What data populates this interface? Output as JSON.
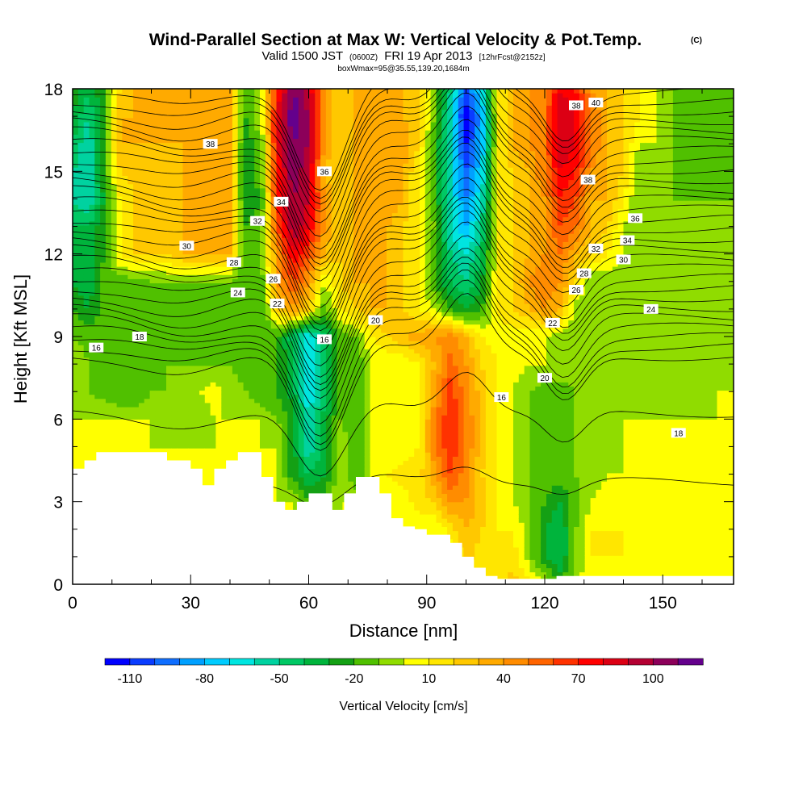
{
  "chart_data": {
    "type": "heatmap",
    "title": {
      "main": "Wind-Parallel Section at Max W: Vertical Velocity & Pot.Temp.",
      "copyright": "(C)",
      "valid_prefix": "Valid 1500 JST",
      "valid_utc": "(0600Z)",
      "valid_date": "FRI 19 Apr 2013",
      "forecast": "[12hrFcst@2152z]",
      "box": "boxWmax=95@35.55,139.20,1684m"
    },
    "xlabel": "Distance [nm]",
    "ylabel": "Height [Kft MSL]",
    "xlim": [
      0,
      168
    ],
    "ylim": [
      0,
      18
    ],
    "xticks": [
      0,
      30,
      60,
      90,
      120,
      150
    ],
    "yticks": [
      0,
      3,
      6,
      9,
      12,
      15,
      18
    ],
    "colorbar": {
      "title": "Vertical Velocity [cm/s]",
      "levels": [
        -120,
        -110,
        -100,
        -90,
        -80,
        -70,
        -60,
        -50,
        -40,
        -30,
        -20,
        -10,
        0,
        10,
        20,
        30,
        40,
        50,
        60,
        70,
        80,
        90,
        100,
        110,
        120
      ],
      "colors": [
        "#0000ff",
        "#0a3cff",
        "#0f6eff",
        "#00a0ff",
        "#00ccff",
        "#00e5e0",
        "#00d2a0",
        "#00c864",
        "#00b43c",
        "#14a014",
        "#50c000",
        "#90dc00",
        "#ffff00",
        "#ffe600",
        "#ffc800",
        "#ffaa00",
        "#ff8c00",
        "#ff6400",
        "#ff3200",
        "#ff0000",
        "#dc0014",
        "#b40032",
        "#8c005a",
        "#64008c"
      ],
      "tick_labels": [
        "-110",
        "-80",
        "-50",
        "-20",
        "10",
        "40",
        "70",
        "100"
      ]
    },
    "w_field": {
      "units": "cm/s",
      "x": [
        0,
        4,
        8,
        12,
        16,
        20,
        24,
        28,
        32,
        36,
        40,
        44,
        48,
        52,
        56,
        60,
        64,
        68,
        72,
        76,
        80,
        84,
        88,
        92,
        96,
        100,
        104,
        108,
        112,
        116,
        120,
        124,
        128,
        132,
        136,
        140,
        144,
        148,
        152,
        156,
        160,
        164,
        168
      ],
      "z": [
        0,
        1,
        2,
        3,
        4,
        5,
        6,
        7,
        8,
        9,
        10,
        11,
        12,
        13,
        14,
        15,
        16,
        17,
        18
      ],
      "values": [
        [
          0,
          0,
          0,
          0,
          0,
          0,
          0,
          0,
          0,
          0,
          0,
          0,
          0,
          0,
          0,
          0,
          0,
          0,
          0,
          0,
          0,
          0,
          0,
          0,
          0,
          0,
          5,
          15,
          25,
          15,
          0,
          -20,
          0,
          5,
          5,
          5,
          0,
          0,
          0,
          0,
          0,
          0,
          0
        ],
        [
          0,
          0,
          0,
          0,
          0,
          0,
          0,
          0,
          0,
          0,
          0,
          0,
          0,
          0,
          0,
          0,
          0,
          0,
          0,
          0,
          0,
          0,
          0,
          0,
          0,
          25,
          15,
          15,
          15,
          -5,
          -30,
          -40,
          -10,
          10,
          10,
          10,
          0,
          0,
          0,
          0,
          0,
          0,
          0
        ],
        [
          0,
          0,
          0,
          0,
          0,
          0,
          0,
          0,
          0,
          0,
          0,
          0,
          0,
          0,
          0,
          0,
          0,
          0,
          0,
          0,
          0,
          0,
          0,
          0,
          15,
          30,
          20,
          10,
          10,
          -5,
          -30,
          -40,
          -10,
          10,
          10,
          10,
          0,
          0,
          0,
          0,
          0,
          0,
          0
        ],
        [
          0,
          0,
          0,
          0,
          0,
          0,
          0,
          0,
          0,
          0,
          0,
          0,
          0,
          0,
          0,
          -20,
          -20,
          0,
          0,
          0,
          0,
          5,
          15,
          20,
          40,
          40,
          25,
          10,
          0,
          -10,
          -20,
          -30,
          -15,
          0,
          5,
          5,
          0,
          0,
          0,
          0,
          0,
          0,
          0
        ],
        [
          0,
          0,
          0,
          0,
          0,
          0,
          0,
          0,
          0,
          0,
          0,
          0,
          0,
          0,
          -25,
          -40,
          -30,
          0,
          -20,
          0,
          10,
          15,
          15,
          40,
          60,
          45,
          20,
          10,
          0,
          -10,
          -15,
          -15,
          -10,
          -5,
          0,
          0,
          0,
          0,
          0,
          0,
          0,
          0,
          0
        ],
        [
          0,
          0,
          0,
          0,
          0,
          0,
          0,
          0,
          0,
          0,
          0,
          0,
          0,
          0,
          -25,
          -60,
          -35,
          0,
          -20,
          0,
          0,
          5,
          10,
          45,
          70,
          50,
          25,
          10,
          0,
          -10,
          -20,
          -15,
          -10,
          -5,
          -5,
          0,
          0,
          0,
          0,
          0,
          0,
          0,
          0
        ],
        [
          0,
          0,
          0,
          0,
          0,
          0,
          -10,
          0,
          -10,
          0,
          0,
          0,
          0,
          -10,
          -25,
          -60,
          -35,
          -10,
          -20,
          0,
          0,
          0,
          10,
          45,
          70,
          50,
          25,
          10,
          0,
          -10,
          -15,
          -15,
          -10,
          -5,
          -5,
          0,
          0,
          0,
          0,
          0,
          0,
          0,
          0
        ],
        [
          0,
          -10,
          -15,
          -20,
          -20,
          -10,
          -10,
          -5,
          0,
          5,
          -5,
          -10,
          -20,
          -20,
          -35,
          -70,
          -45,
          -15,
          -20,
          0,
          0,
          0,
          10,
          40,
          65,
          45,
          25,
          10,
          0,
          -10,
          -15,
          -15,
          -10,
          -5,
          -5,
          -5,
          -5,
          -5,
          -5,
          -5,
          -5,
          0,
          0
        ],
        [
          0,
          -10,
          -15,
          -20,
          -20,
          -15,
          -10,
          -10,
          -10,
          -10,
          -10,
          -15,
          -20,
          -20,
          -35,
          -70,
          -45,
          -15,
          -20,
          0,
          0,
          0,
          10,
          30,
          55,
          40,
          20,
          10,
          5,
          0,
          0,
          0,
          -5,
          -5,
          -5,
          -5,
          -5,
          -5,
          -5,
          -5,
          -5,
          -5,
          0
        ],
        [
          -10,
          -15,
          -15,
          -20,
          -20,
          -20,
          -15,
          -20,
          -20,
          -20,
          -20,
          -20,
          -20,
          -20,
          -45,
          -70,
          -45,
          -15,
          -10,
          10,
          20,
          30,
          35,
          40,
          45,
          30,
          10,
          5,
          5,
          0,
          0,
          -5,
          -5,
          -5,
          -5,
          -5,
          -5,
          -5,
          -5,
          -5,
          -5,
          -5,
          -5
        ],
        [
          -20,
          -30,
          -15,
          -15,
          -15,
          -15,
          -15,
          -15,
          -15,
          -15,
          -15,
          -20,
          -20,
          20,
          40,
          20,
          -15,
          10,
          20,
          30,
          30,
          20,
          10,
          0,
          -20,
          -30,
          -20,
          10,
          20,
          30,
          40,
          30,
          -10,
          -10,
          -5,
          -5,
          -5,
          -5,
          -10,
          -10,
          -10,
          -10,
          -10
        ],
        [
          -30,
          -40,
          -15,
          -15,
          -15,
          -10,
          -10,
          -10,
          -10,
          -10,
          -10,
          -20,
          -15,
          40,
          60,
          40,
          0,
          20,
          30,
          30,
          30,
          20,
          10,
          -20,
          -40,
          -50,
          -30,
          10,
          20,
          40,
          50,
          40,
          20,
          -10,
          -5,
          -5,
          -5,
          -5,
          -10,
          -10,
          -10,
          -10,
          -10
        ],
        [
          -40,
          -40,
          -20,
          10,
          20,
          20,
          20,
          30,
          30,
          30,
          30,
          -20,
          -10,
          40,
          80,
          60,
          30,
          20,
          30,
          30,
          30,
          20,
          10,
          -20,
          -50,
          -60,
          -40,
          10,
          20,
          30,
          40,
          50,
          30,
          20,
          10,
          0,
          -10,
          -10,
          -5,
          -5,
          -5,
          -10,
          -10
        ],
        [
          -40,
          -40,
          -20,
          10,
          20,
          20,
          20,
          30,
          30,
          30,
          30,
          -20,
          -10,
          60,
          100,
          80,
          40,
          20,
          30,
          30,
          30,
          20,
          10,
          -10,
          -60,
          -80,
          -50,
          10,
          20,
          30,
          40,
          60,
          50,
          30,
          20,
          0,
          -10,
          -10,
          -5,
          -5,
          -5,
          -10,
          -10
        ],
        [
          -50,
          -60,
          -30,
          10,
          20,
          20,
          25,
          30,
          30,
          30,
          30,
          -30,
          -20,
          70,
          100,
          90,
          40,
          20,
          30,
          30,
          40,
          30,
          10,
          -20,
          -60,
          -90,
          -60,
          10,
          20,
          30,
          40,
          70,
          60,
          30,
          30,
          10,
          -10,
          -10,
          -10,
          -10,
          -10,
          -10,
          -10
        ],
        [
          -50,
          -60,
          -20,
          20,
          25,
          25,
          25,
          30,
          30,
          30,
          30,
          -30,
          -10,
          70,
          110,
          90,
          30,
          20,
          30,
          30,
          40,
          30,
          10,
          -20,
          -60,
          -100,
          -70,
          10,
          20,
          30,
          50,
          80,
          70,
          40,
          30,
          20,
          -10,
          -10,
          -10,
          -20,
          -20,
          -20,
          -20
        ],
        [
          -40,
          -60,
          -20,
          30,
          30,
          30,
          30,
          30,
          30,
          30,
          30,
          -30,
          -10,
          80,
          110,
          100,
          40,
          20,
          30,
          30,
          40,
          40,
          20,
          -20,
          -60,
          -110,
          -80,
          10,
          30,
          40,
          50,
          90,
          80,
          50,
          30,
          20,
          0,
          0,
          -10,
          -20,
          -20,
          -20,
          -20
        ],
        [
          -30,
          -50,
          -20,
          30,
          30,
          30,
          30,
          30,
          30,
          30,
          30,
          -20,
          0,
          80,
          120,
          100,
          40,
          20,
          30,
          30,
          30,
          30,
          20,
          -10,
          -60,
          -120,
          -80,
          10,
          30,
          40,
          50,
          90,
          80,
          50,
          30,
          20,
          10,
          0,
          -10,
          -20,
          -20,
          -20,
          -20
        ],
        [
          -20,
          -40,
          -20,
          20,
          30,
          30,
          30,
          30,
          30,
          30,
          30,
          -20,
          0,
          70,
          110,
          90,
          40,
          20,
          30,
          30,
          30,
          30,
          20,
          -10,
          -50,
          -100,
          -70,
          10,
          30,
          40,
          50,
          80,
          70,
          40,
          30,
          20,
          10,
          0,
          -10,
          -20,
          -20,
          -20,
          -20
        ]
      ]
    },
    "terrain": {
      "x": [
        0,
        3,
        6,
        9,
        12,
        18,
        24,
        30,
        33,
        36,
        39,
        42,
        45,
        48,
        51,
        54,
        57,
        60,
        63,
        66,
        69,
        72,
        75,
        78,
        81,
        84,
        87,
        90,
        93,
        96,
        99,
        102,
        105,
        108,
        111,
        114,
        117,
        120,
        123,
        126,
        129,
        132,
        140,
        150,
        160,
        168
      ],
      "h_kft": [
        4.2,
        4.5,
        4.8,
        4.8,
        4.8,
        4.8,
        4.5,
        4.2,
        3.6,
        4.2,
        4.5,
        4.8,
        4.8,
        3.9,
        3.0,
        2.7,
        3.0,
        3.3,
        3.3,
        2.7,
        3.3,
        3.9,
        3.9,
        3.3,
        2.4,
        2.1,
        2.0,
        1.8,
        1.8,
        1.5,
        1.0,
        0.6,
        0.3,
        0.2,
        0.2,
        0.2,
        0.2,
        0.2,
        0.3,
        0.3,
        0.3,
        0.3,
        0.3,
        0.3,
        0.3,
        0.3
      ]
    },
    "theta_field": {
      "units": "C",
      "levels": [
        14,
        15,
        16,
        17,
        18,
        19,
        20,
        21,
        22,
        23,
        24,
        25,
        26,
        27,
        28,
        29,
        30,
        31,
        32,
        33,
        34,
        35,
        36,
        37,
        38,
        39,
        40,
        41,
        42,
        43
      ],
      "theta_sfc": 12.5,
      "lapse_above_transition_per_kft": 2.8,
      "transition_kft": 8.2,
      "theta_at_transition": 15.8,
      "waves": [
        {
          "x": 28,
          "amplitude_kft": -0.6,
          "width_nm": 14
        },
        {
          "x": 61,
          "amplitude_kft": -2.3,
          "width_nm": 8
        },
        {
          "x": 66,
          "amplitude_kft": -1.5,
          "width_nm": 8
        },
        {
          "x": 79,
          "amplitude_kft": 0.6,
          "width_nm": 8
        },
        {
          "x": 96,
          "amplitude_kft": 0.9,
          "width_nm": 9
        },
        {
          "x": 101,
          "amplitude_kft": 1.6,
          "width_nm": 7
        },
        {
          "x": 125,
          "amplitude_kft": -1.7,
          "width_nm": 7
        }
      ],
      "contour_labels": [
        {
          "v": "16",
          "x": 6,
          "z": 8.6
        },
        {
          "v": "18",
          "x": 17,
          "z": 9.0
        },
        {
          "v": "16",
          "x": 64,
          "z": 8.9
        },
        {
          "v": "20",
          "x": 77,
          "z": 9.6
        },
        {
          "v": "22",
          "x": 52,
          "z": 10.2
        },
        {
          "v": "24",
          "x": 42,
          "z": 10.6
        },
        {
          "v": "26",
          "x": 51,
          "z": 11.1
        },
        {
          "v": "28",
          "x": 41,
          "z": 11.7
        },
        {
          "v": "30",
          "x": 29,
          "z": 12.3
        },
        {
          "v": "32",
          "x": 47,
          "z": 13.2
        },
        {
          "v": "34",
          "x": 53,
          "z": 13.9
        },
        {
          "v": "36",
          "x": 64,
          "z": 15.0
        },
        {
          "v": "38",
          "x": 35,
          "z": 16.0
        },
        {
          "v": "38",
          "x": 128,
          "z": 17.4
        },
        {
          "v": "16",
          "x": 109,
          "z": 6.8
        },
        {
          "v": "18",
          "x": 154,
          "z": 5.5
        },
        {
          "v": "20",
          "x": 120,
          "z": 7.5
        },
        {
          "v": "22",
          "x": 122,
          "z": 9.5
        },
        {
          "v": "24",
          "x": 147,
          "z": 10.0
        },
        {
          "v": "26",
          "x": 128,
          "z": 10.7
        },
        {
          "v": "28",
          "x": 130,
          "z": 11.3
        },
        {
          "v": "30",
          "x": 140,
          "z": 11.8
        },
        {
          "v": "32",
          "x": 133,
          "z": 12.2
        },
        {
          "v": "34",
          "x": 141,
          "z": 12.5
        },
        {
          "v": "36",
          "x": 143,
          "z": 13.3
        },
        {
          "v": "38",
          "x": 131,
          "z": 14.7
        },
        {
          "v": "40",
          "x": 133,
          "z": 17.5
        }
      ]
    }
  }
}
